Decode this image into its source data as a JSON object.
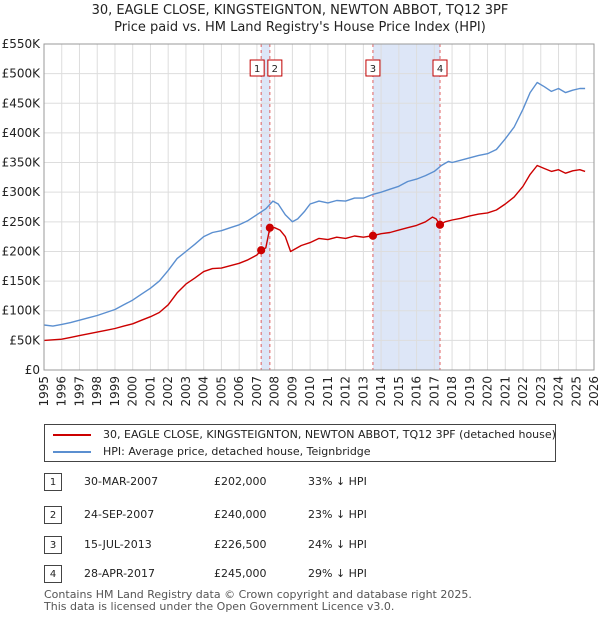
{
  "title": {
    "line1": "30, EAGLE CLOSE, KINGSTEIGNTON, NEWTON ABBOT, TQ12 3PF",
    "line2": "Price paid vs. HM Land Registry's House Price Index (HPI)"
  },
  "legend": {
    "property": "30, EAGLE CLOSE, KINGSTEIGNTON, NEWTON ABBOT, TQ12 3PF (detached house)",
    "hpi": "HPI: Average price, detached house, Teignbridge"
  },
  "colors": {
    "property": "#cc0000",
    "hpi": "#5b8fd0",
    "highlight": "#dde6f7",
    "marker_line": "#e06060",
    "grid": "#dddddd"
  },
  "transactions": [
    {
      "num": "1",
      "date": "30-MAR-2007",
      "price": "£202,000",
      "hpi_diff": "33% ↓ HPI"
    },
    {
      "num": "2",
      "date": "24-SEP-2007",
      "price": "£240,000",
      "hpi_diff": "23% ↓ HPI"
    },
    {
      "num": "3",
      "date": "15-JUL-2013",
      "price": "£226,500",
      "hpi_diff": "24% ↓ HPI"
    },
    {
      "num": "4",
      "date": "28-APR-2017",
      "price": "£245,000",
      "hpi_diff": "29% ↓ HPI"
    }
  ],
  "footer": {
    "line1": "Contains HM Land Registry data © Crown copyright and database right 2025.",
    "line2": "This data is licensed under the Open Government Licence v3.0."
  },
  "chart_data": {
    "type": "line",
    "xlim": [
      1995,
      2026
    ],
    "ylim": [
      0,
      550000
    ],
    "x_ticks": [
      "1995",
      "1996",
      "1997",
      "1998",
      "1999",
      "2000",
      "2001",
      "2002",
      "2003",
      "2004",
      "2005",
      "2006",
      "2007",
      "2008",
      "2009",
      "2010",
      "2011",
      "2012",
      "2013",
      "2014",
      "2015",
      "2016",
      "2017",
      "2018",
      "2019",
      "2020",
      "2021",
      "2022",
      "2023",
      "2024",
      "2025",
      "2026"
    ],
    "y_ticks": [
      {
        "value": 0,
        "label": "£0"
      },
      {
        "value": 50000,
        "label": "£50K"
      },
      {
        "value": 100000,
        "label": "£100K"
      },
      {
        "value": 150000,
        "label": "£150K"
      },
      {
        "value": 200000,
        "label": "£200K"
      },
      {
        "value": 250000,
        "label": "£250K"
      },
      {
        "value": 300000,
        "label": "£300K"
      },
      {
        "value": 350000,
        "label": "£350K"
      },
      {
        "value": 400000,
        "label": "£400K"
      },
      {
        "value": 450000,
        "label": "£450K"
      },
      {
        "value": 500000,
        "label": "£500K"
      },
      {
        "value": 550000,
        "label": "£550K"
      }
    ],
    "highlight_spans": [
      [
        2007.24,
        2007.73
      ],
      [
        2013.54,
        2017.32
      ]
    ],
    "sales": [
      {
        "label": "1",
        "x": 2007.24,
        "y": 202000
      },
      {
        "label": "2",
        "x": 2007.73,
        "y": 240000
      },
      {
        "label": "3",
        "x": 2013.54,
        "y": 226500
      },
      {
        "label": "4",
        "x": 2017.32,
        "y": 245000
      }
    ],
    "series": [
      {
        "name": "HPI: Average price, detached house, Teignbridge",
        "x": [
          1995.0,
          1995.5,
          1996.0,
          1996.5,
          1997.0,
          1997.5,
          1998.0,
          1998.5,
          1999.0,
          1999.5,
          2000.0,
          2000.5,
          2001.0,
          2001.5,
          2002.0,
          2002.5,
          2003.0,
          2003.5,
          2004.0,
          2004.5,
          2005.0,
          2005.5,
          2006.0,
          2006.5,
          2007.0,
          2007.5,
          2007.9,
          2008.2,
          2008.6,
          2009.0,
          2009.3,
          2009.7,
          2010.0,
          2010.5,
          2011.0,
          2011.5,
          2012.0,
          2012.5,
          2013.0,
          2013.5,
          2014.0,
          2014.5,
          2015.0,
          2015.5,
          2016.0,
          2016.5,
          2017.0,
          2017.4,
          2017.8,
          2018.0,
          2018.5,
          2019.0,
          2019.5,
          2020.0,
          2020.5,
          2021.0,
          2021.5,
          2022.0,
          2022.4,
          2022.8,
          2023.2,
          2023.6,
          2024.0,
          2024.4,
          2024.8,
          2025.2,
          2025.5
        ],
        "values": [
          76000,
          74000,
          77000,
          80000,
          84000,
          88000,
          92000,
          97000,
          102000,
          110000,
          118000,
          128000,
          138000,
          150000,
          168000,
          188000,
          200000,
          212000,
          225000,
          232000,
          235000,
          240000,
          245000,
          252000,
          262000,
          272000,
          285000,
          280000,
          262000,
          250000,
          255000,
          268000,
          280000,
          285000,
          282000,
          286000,
          285000,
          290000,
          290000,
          296000,
          300000,
          305000,
          310000,
          318000,
          322000,
          328000,
          335000,
          345000,
          352000,
          350000,
          354000,
          358000,
          362000,
          365000,
          372000,
          390000,
          410000,
          440000,
          468000,
          485000,
          478000,
          470000,
          475000,
          468000,
          472000,
          475000,
          475000
        ]
      },
      {
        "name": "30, EAGLE CLOSE, KINGSTEIGNTON, NEWTON ABBOT, TQ12 3PF (detached house)",
        "x": [
          1995.0,
          1995.5,
          1996.0,
          1996.5,
          1997.0,
          1997.5,
          1998.0,
          1998.5,
          1999.0,
          1999.5,
          2000.0,
          2000.5,
          2001.0,
          2001.5,
          2002.0,
          2002.5,
          2003.0,
          2003.5,
          2004.0,
          2004.5,
          2005.0,
          2005.5,
          2006.0,
          2006.5,
          2007.0,
          2007.24,
          2007.5,
          2007.73,
          2008.0,
          2008.3,
          2008.6,
          2008.9,
          2009.2,
          2009.5,
          2010.0,
          2010.5,
          2011.0,
          2011.5,
          2012.0,
          2012.5,
          2013.0,
          2013.54,
          2014.0,
          2014.5,
          2015.0,
          2015.5,
          2016.0,
          2016.5,
          2016.9,
          2017.1,
          2017.32,
          2017.6,
          2018.0,
          2018.5,
          2019.0,
          2019.5,
          2020.0,
          2020.5,
          2021.0,
          2021.5,
          2022.0,
          2022.4,
          2022.8,
          2023.2,
          2023.6,
          2024.0,
          2024.4,
          2024.8,
          2025.2,
          2025.5
        ],
        "values": [
          50000,
          51000,
          52000,
          55000,
          58000,
          61000,
          64000,
          67000,
          70000,
          74000,
          78000,
          84000,
          90000,
          97000,
          110000,
          130000,
          145000,
          155000,
          166000,
          171000,
          172000,
          176000,
          180000,
          186000,
          194000,
          202000,
          206000,
          240000,
          240000,
          236000,
          225000,
          200000,
          205000,
          210000,
          215000,
          222000,
          220000,
          224000,
          222000,
          226000,
          224000,
          226500,
          230000,
          232000,
          236000,
          240000,
          244000,
          250000,
          258000,
          255000,
          245000,
          250000,
          253000,
          256000,
          260000,
          263000,
          265000,
          270000,
          280000,
          292000,
          310000,
          330000,
          345000,
          340000,
          335000,
          338000,
          332000,
          336000,
          338000,
          335000
        ]
      }
    ]
  }
}
